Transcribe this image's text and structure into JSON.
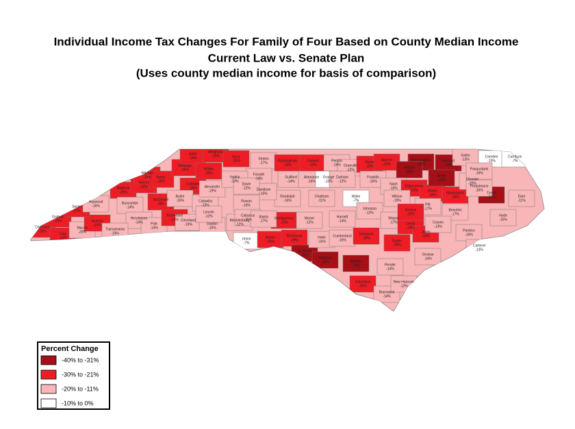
{
  "title_lines": [
    "Individual Income Tax Changes For Family of Four Based on County Median Income",
    "Current Law vs. Senate Plan",
    "(Uses county median income for basis of comparison)"
  ],
  "legend": {
    "title": "Percent Change",
    "bins": [
      {
        "label": "-40% to -31%",
        "min": -40,
        "max": -31,
        "color": "#a50f15"
      },
      {
        "label": "-30% to -21%",
        "min": -30,
        "max": -21,
        "color": "#ee1c25"
      },
      {
        "label": "-20% to -11%",
        "min": -20,
        "max": -11,
        "color": "#f9b6b8"
      },
      {
        "label": "-10% to 0%",
        "min": -10,
        "max": 0,
        "color": "#ffffff"
      }
    ]
  },
  "counties": {
    "names": [
      "Cherokee",
      "Clay",
      "Graham",
      "Macon",
      "Jackson",
      "Swain",
      "Haywood",
      "Madison",
      "Buncombe",
      "Henderson",
      "Transylvania",
      "Polk",
      "Rutherford",
      "McDowell",
      "Yancey",
      "Mitchell",
      "Avery",
      "Watauga",
      "Ashe",
      "Alleghany",
      "Surry",
      "Wilkes",
      "Caldwell",
      "Burke",
      "Catawba",
      "Cleveland",
      "Gaston",
      "Lincoln",
      "Mecklenburg",
      "Union",
      "Stokes",
      "Rockingham",
      "Caswell",
      "Person",
      "Granville",
      "Vance",
      "Warren",
      "Northampton",
      "Hertford",
      "Halifax",
      "Gates",
      "Camden",
      "Currituck",
      "Forsyth",
      "Guilford",
      "Alamance",
      "Orange",
      "Durham",
      "Wake",
      "Franklin",
      "Nash",
      "Edgecombe",
      "Martin",
      "Bertie",
      "Washington",
      "Tyrrell",
      "Dare",
      "Hyde",
      "Beaufort",
      "Pitt",
      "Wilson",
      "Johnston",
      "Harnett",
      "Chatham",
      "Randolph",
      "Davidson",
      "Montgomery",
      "Moore",
      "Anson",
      "Richmond",
      "Scotland",
      "Robeson",
      "Bladen",
      "Hoke",
      "Cumberland",
      "Sampson",
      "Duplin",
      "Wayne",
      "Lenoir",
      "Greene",
      "Jones",
      "Craven",
      "Pamlico",
      "Carteret",
      "Onslow",
      "Pender",
      "Columbus",
      "Brunswick",
      "New Hanover",
      "Chowan",
      "Pasquotank",
      "Perquimans",
      "Alexander",
      "Yadkin",
      "Davie",
      "Rowan",
      "Cabarrus",
      "Stanly"
    ],
    "values": [
      -25,
      -23,
      -25,
      -20,
      -24,
      -27,
      -16,
      -26,
      -14,
      -14,
      -14,
      -14,
      -23,
      -26,
      -22,
      -24,
      -26,
      -26,
      -24,
      -25,
      -26,
      -26,
      -25,
      -15,
      -15,
      -19,
      -16,
      -12,
      -12,
      -7,
      -17,
      -23,
      -22,
      -16,
      -12,
      -22,
      -23,
      -33,
      -36,
      -35,
      -13,
      -10,
      -7,
      -14,
      -14,
      -16,
      -10,
      -12,
      -7,
      -16,
      -16,
      -30,
      -30,
      -32,
      -30,
      -33,
      -11,
      -15,
      -17,
      -17,
      -19,
      -12,
      -14,
      -11,
      -16,
      -15,
      -23,
      -12,
      -25,
      -28,
      -40,
      -35,
      -36,
      -16,
      -16,
      -28,
      -26,
      -17,
      -28,
      -25,
      -26,
      -13,
      -16,
      -13,
      -14,
      -14,
      -30,
      -14,
      -12,
      -20,
      -16,
      -16,
      -19,
      -13,
      -12,
      -16,
      -11,
      -17
    ],
    "value_labels": [
      "-25%",
      "-23%",
      "-25%",
      "-20%",
      "-24%",
      "-27%",
      "-16%",
      "-26%",
      "-14%",
      "-14%",
      "-14%",
      "-14%",
      "-23%",
      "-26%",
      "-22%",
      "-24%",
      "-26%",
      "-26%",
      "-24%",
      "-25%",
      "-26%",
      "-26%",
      "-25%",
      "-15%",
      "-15%",
      "-19%",
      "-16%",
      "-12%",
      "-12%",
      "-7%",
      "-17%",
      "-23%",
      "-22%",
      "-16%",
      "-12%",
      "-22%",
      "-23%",
      "-33%",
      "-36%",
      "-35%",
      "-13%",
      "-10%",
      "-7%",
      "-14%",
      "-14%",
      "-16%",
      "-10%",
      "-12%",
      "-7%",
      "-16%",
      "-16%",
      "-30%",
      "-30%",
      "-32%",
      "-30%",
      "-33%",
      "-11%",
      "-15%",
      "-17%",
      "-17%",
      "-19%",
      "-12%",
      "-14%",
      "-11%",
      "-16%",
      "-15%",
      "-23%",
      "-12%",
      "-25%",
      "-28%",
      "-40%",
      "-35%",
      "-36%",
      "-16%",
      "-16%",
      "-28%",
      "-26%",
      "-17%",
      "-28%",
      "-25%",
      "-26%",
      "-13%",
      "-16%",
      "-13%",
      "-14%",
      "-14%",
      "-30%",
      "-14%",
      "-12%",
      "-20%",
      "-16%",
      "-16%",
      "-19%",
      "-13%",
      "-12%",
      "-16%",
      "-11%",
      "-17%"
    ]
  }
}
